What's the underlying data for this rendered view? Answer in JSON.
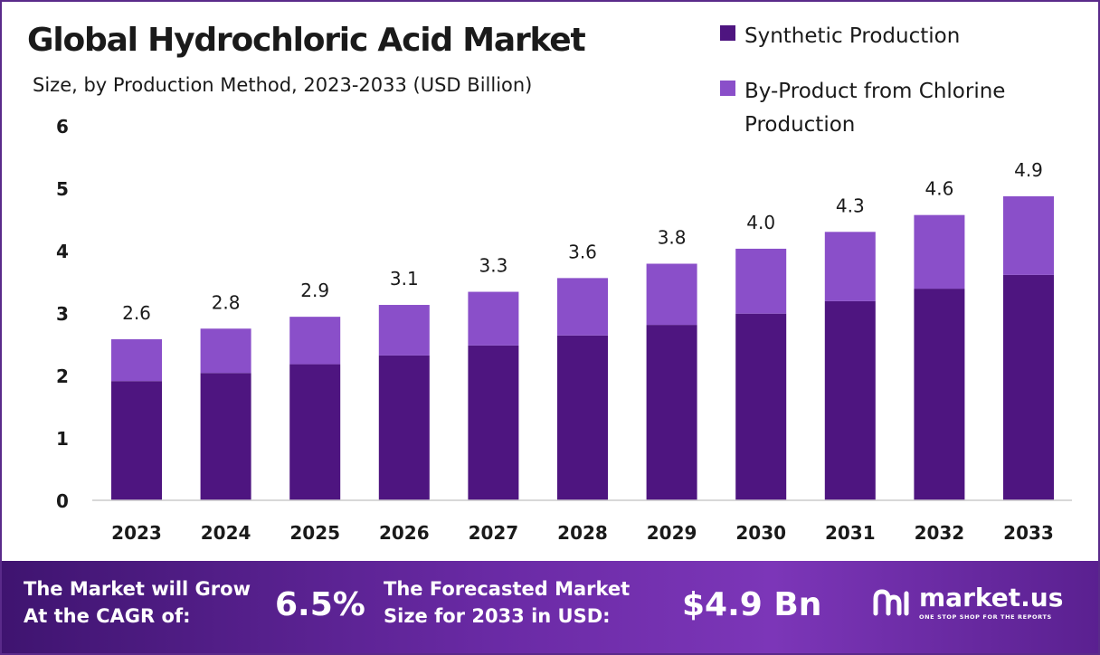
{
  "chart_data": {
    "type": "bar",
    "stacked": true,
    "title": "Global Hydrochloric Acid Market",
    "subtitle": "Size, by Production Method, 2023-2033 (USD Billion)",
    "categories": [
      "2023",
      "2024",
      "2025",
      "2026",
      "2027",
      "2028",
      "2029",
      "2030",
      "2031",
      "2032",
      "2033"
    ],
    "series": [
      {
        "name": "Synthetic Production",
        "color": "#4e1580",
        "values": [
          1.91,
          2.04,
          2.18,
          2.32,
          2.48,
          2.64,
          2.81,
          2.99,
          3.19,
          3.39,
          3.61
        ]
      },
      {
        "name": "By-Product from Chlorine Production",
        "color": "#8a4fc9",
        "values": [
          0.67,
          0.71,
          0.76,
          0.81,
          0.86,
          0.92,
          0.98,
          1.04,
          1.11,
          1.18,
          1.26
        ]
      }
    ],
    "totals_labels": [
      "2.6",
      "2.8",
      "2.9",
      "3.1",
      "3.3",
      "3.6",
      "3.8",
      "4.0",
      "4.3",
      "4.6",
      "4.9"
    ],
    "totals": [
      2.58,
      2.75,
      2.94,
      3.13,
      3.34,
      3.56,
      3.79,
      4.03,
      4.3,
      4.57,
      4.87
    ],
    "y_ticks": [
      "0",
      "1",
      "2",
      "3",
      "4",
      "5",
      "6"
    ],
    "ylim": [
      0,
      6
    ],
    "grid": false,
    "legend_position": "top-right"
  },
  "footer": {
    "cagr_line1": "The Market will Grow",
    "cagr_line2": "At the CAGR of:",
    "cagr_value": "6.5%",
    "forecast_line1": "The Forecasted Market",
    "forecast_line2": "Size for 2033 in USD:",
    "forecast_value": "$4.9 Bn",
    "brand_name": "market.us",
    "brand_tagline": "ONE STOP SHOP FOR THE REPORTS",
    "brand_icon": "market-us-logo-icon"
  },
  "colors": {
    "footer_start": "#3f1470",
    "footer_end": "#7c36b8",
    "border": "#5a2a8a"
  }
}
